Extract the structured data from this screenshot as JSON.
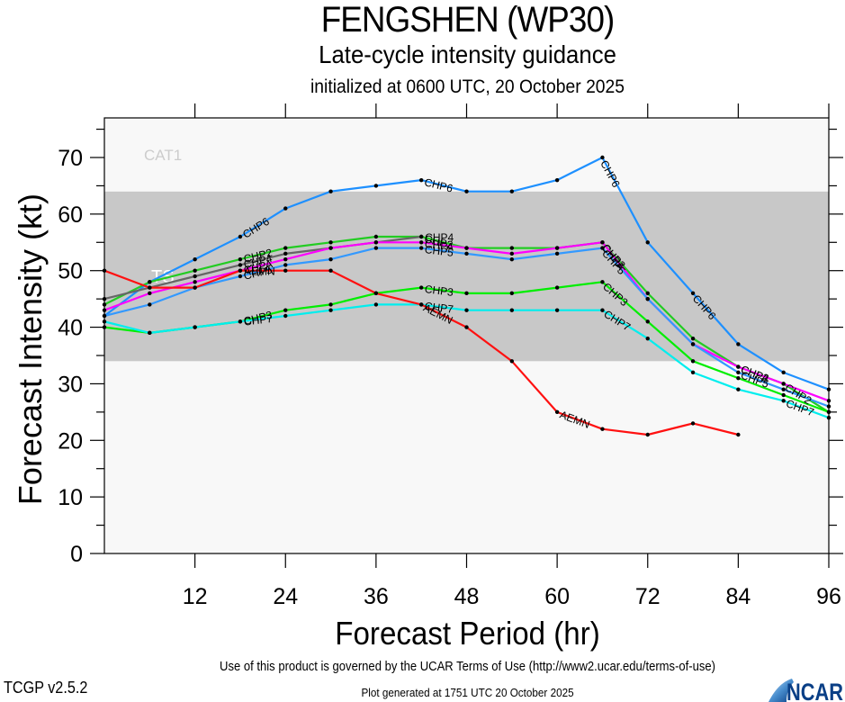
{
  "header": {
    "title": "FENGSHEN (WP30)",
    "subtitle": "Late-cycle intensity guidance",
    "init": "initialized at 0600 UTC, 20 October 2025"
  },
  "footer": {
    "terms": "Use of this product is governed by the UCAR Terms of Use (http://www2.ucar.edu/terms-of-use)",
    "version": "TCGP v2.5.2",
    "generated": "Plot generated at 1751 UTC   20 October 2025",
    "logo_text": "NCAR"
  },
  "chart_data": {
    "type": "line",
    "title": "FENGSHEN (WP30)",
    "subtitle": "Late-cycle intensity guidance",
    "xlabel": "Forecast Period (hr)",
    "ylabel": "Forecast Intensity (kt)",
    "xlim": [
      0,
      96
    ],
    "ylim": [
      0,
      77
    ],
    "xticks": [
      12,
      24,
      36,
      48,
      60,
      72,
      84,
      96
    ],
    "yticks": [
      0,
      10,
      20,
      30,
      40,
      50,
      60,
      70
    ],
    "grid": false,
    "bands": [
      {
        "label": "TS",
        "from": 34,
        "to": 64,
        "color": "#c8c8c8"
      },
      {
        "label": "CAT1",
        "from": 64,
        "to": 83,
        "color": "#f8f8f8"
      }
    ],
    "plot_background": "#f8f8f8",
    "series": [
      {
        "name": "CHP6",
        "color": "#1e90ff",
        "x": [
          0,
          6,
          12,
          18,
          24,
          30,
          36,
          42,
          48,
          54,
          60,
          66,
          72,
          78,
          84,
          90,
          96
        ],
        "values": [
          42,
          48,
          52,
          56,
          61,
          64,
          65,
          66,
          64,
          64,
          66,
          70,
          55,
          46,
          37,
          32,
          29
        ]
      },
      {
        "name": "CHP2",
        "color": "#22cc22",
        "x": [
          0,
          6,
          12,
          18,
          24,
          30,
          36,
          42,
          48,
          54,
          60,
          66,
          72,
          78,
          84,
          90,
          96
        ],
        "values": [
          44,
          48,
          50,
          52,
          54,
          55,
          56,
          56,
          54,
          54,
          54,
          55,
          46,
          38,
          33,
          30,
          25
        ]
      },
      {
        "name": "CHP4",
        "color": "#666666",
        "x": [
          0,
          6,
          12,
          18,
          24,
          30,
          36,
          42
        ],
        "values": [
          45,
          47,
          49,
          51,
          53,
          54,
          55,
          56
        ]
      },
      {
        "name": "CHPA",
        "color": "#ff00ff",
        "x": [
          0,
          6,
          12,
          18,
          24,
          30,
          36,
          42,
          48,
          54,
          60,
          66,
          72,
          78,
          84,
          90,
          96
        ],
        "values": [
          43,
          46,
          48,
          50,
          52,
          54,
          55,
          55,
          54,
          53,
          54,
          55,
          45,
          37,
          33,
          30,
          27
        ]
      },
      {
        "name": "CHP5",
        "color": "#3399ff",
        "x": [
          0,
          6,
          12,
          18,
          24,
          30,
          36,
          42,
          48,
          54,
          60,
          66,
          72,
          78,
          84,
          90,
          96
        ],
        "values": [
          42,
          44,
          47,
          49,
          51,
          52,
          54,
          54,
          53,
          52,
          53,
          54,
          45,
          37,
          32,
          29,
          26
        ]
      },
      {
        "name": "CHP3",
        "color": "#00ee00",
        "x": [
          0,
          6,
          12,
          18,
          24,
          30,
          36,
          42,
          48,
          54,
          60,
          66,
          72,
          78,
          84,
          90,
          96
        ],
        "values": [
          40,
          39,
          40,
          41,
          43,
          44,
          46,
          47,
          46,
          46,
          47,
          48,
          41,
          34,
          31,
          28,
          25
        ]
      },
      {
        "name": "CHP7",
        "color": "#00eeee",
        "x": [
          0,
          6,
          12,
          18,
          24,
          30,
          36,
          42,
          48,
          54,
          60,
          66,
          72,
          78,
          84,
          90,
          96
        ],
        "values": [
          41,
          39,
          40,
          41,
          42,
          43,
          44,
          44,
          43,
          43,
          43,
          43,
          38,
          32,
          29,
          27,
          24
        ]
      },
      {
        "name": "AEMN",
        "color": "#ff1111",
        "x": [
          0,
          6,
          12,
          18,
          24,
          30,
          36,
          42,
          48,
          54,
          60,
          66,
          72,
          78,
          84
        ],
        "values": [
          50,
          47,
          47,
          50,
          50,
          50,
          46,
          44,
          40,
          34,
          25,
          22,
          21,
          23,
          21
        ]
      }
    ],
    "line_labels": [
      {
        "series": "CHP6",
        "at_x": 18
      },
      {
        "series": "CHP6",
        "at_x": 42
      },
      {
        "series": "CHP6",
        "at_x": 66
      },
      {
        "series": "CHP6",
        "at_x": 78
      },
      {
        "series": "CHP2",
        "at_x": 18
      },
      {
        "series": "CHP4",
        "at_x": 18
      },
      {
        "series": "CHPA",
        "at_x": 18
      },
      {
        "series": "CHP5",
        "at_x": 18
      },
      {
        "series": "AEMN",
        "at_x": 18
      },
      {
        "series": "CHP2",
        "at_x": 42
      },
      {
        "series": "CHP4",
        "at_x": 42
      },
      {
        "series": "CHPA",
        "at_x": 42
      },
      {
        "series": "CHP5",
        "at_x": 42
      },
      {
        "series": "CHP3",
        "at_x": 18
      },
      {
        "series": "CHP7",
        "at_x": 18
      },
      {
        "series": "CHP3",
        "at_x": 42
      },
      {
        "series": "CHP7",
        "at_x": 42
      },
      {
        "series": "AEMN",
        "at_x": 42
      },
      {
        "series": "CHP2",
        "at_x": 66
      },
      {
        "series": "CHPA",
        "at_x": 66
      },
      {
        "series": "CHP5",
        "at_x": 66
      },
      {
        "series": "CHP3",
        "at_x": 66
      },
      {
        "series": "CHP7",
        "at_x": 66
      },
      {
        "series": "AEMN",
        "at_x": 60
      },
      {
        "series": "CHP2",
        "at_x": 84
      },
      {
        "series": "CHPA",
        "at_x": 84
      },
      {
        "series": "CHP5",
        "at_x": 84
      },
      {
        "series": "CHP2",
        "at_x": 90
      },
      {
        "series": "CHP7",
        "at_x": 90
      }
    ]
  }
}
